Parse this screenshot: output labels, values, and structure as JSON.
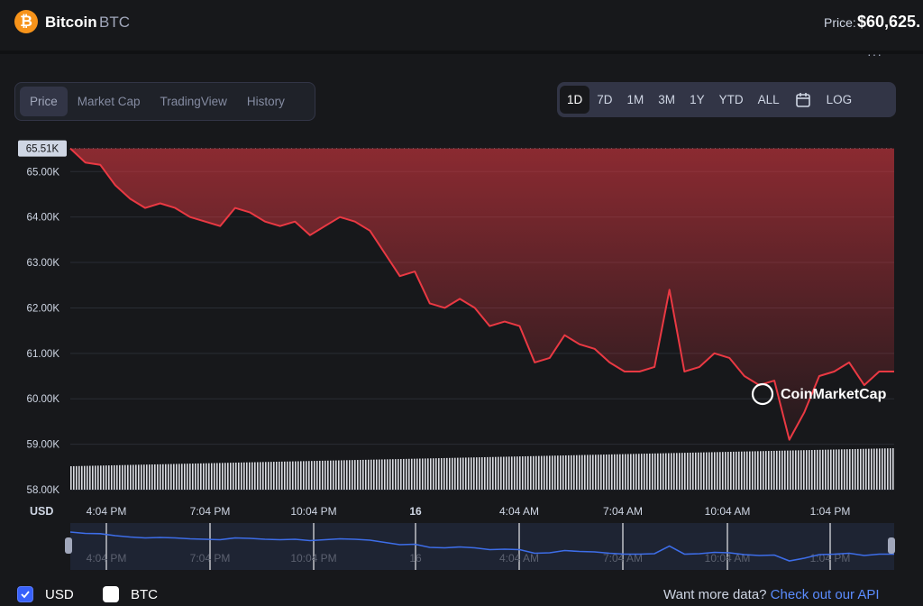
{
  "header": {
    "coin_logo_glyph": "₿",
    "coin_name": "Bitcoin",
    "coin_symbol": "BTC",
    "price_label": "Price:",
    "price_value": "$60,625.",
    "more_glyph": "···"
  },
  "tabs": [
    {
      "label": "Price",
      "active": true
    },
    {
      "label": "Market Cap",
      "active": false
    },
    {
      "label": "TradingView",
      "active": false
    },
    {
      "label": "History",
      "active": false
    }
  ],
  "ranges": [
    {
      "label": "1D",
      "active": true
    },
    {
      "label": "7D",
      "active": false
    },
    {
      "label": "1M",
      "active": false
    },
    {
      "label": "3M",
      "active": false
    },
    {
      "label": "1Y",
      "active": false
    },
    {
      "label": "YTD",
      "active": false
    },
    {
      "label": "ALL",
      "active": false
    }
  ],
  "log_label": "LOG",
  "footer": {
    "usd_label": "USD",
    "btc_label": "BTC",
    "more_data_text": "Want more data?",
    "api_link_text": "Check out our API"
  },
  "colors": {
    "line": "#ea3943",
    "accent": "#3861fb",
    "bitcoin": "#f7931a",
    "navigator_line": "#3d6de8"
  },
  "chart_data": {
    "type": "line",
    "watermark": "CoinMarketCap",
    "current_label": "65.51K",
    "y_axis_unit": "USD",
    "ylim": [
      58000,
      65700
    ],
    "y_ticks": [
      {
        "value": 65000,
        "label": "65.00K"
      },
      {
        "value": 64000,
        "label": "64.00K"
      },
      {
        "value": 63000,
        "label": "63.00K"
      },
      {
        "value": 62000,
        "label": "62.00K"
      },
      {
        "value": 61000,
        "label": "61.00K"
      },
      {
        "value": 60000,
        "label": "60.00K"
      },
      {
        "value": 59000,
        "label": "59.00K"
      },
      {
        "value": 58000,
        "label": "58.00K"
      }
    ],
    "x_ticks": [
      "4:04 PM",
      "7:04 PM",
      "10:04 PM",
      "16",
      "4:04 AM",
      "7:04 AM",
      "10:04 AM",
      "1:04 PM"
    ],
    "grid": true,
    "series": [
      {
        "values": [
          65510,
          65200,
          65150,
          64700,
          64400,
          64200,
          64300,
          64200,
          64000,
          63900,
          63800,
          64200,
          64100,
          63900,
          63800,
          63900,
          63600,
          63800,
          64000,
          63900,
          63700,
          63200,
          62700,
          62800,
          62100,
          62000,
          62200,
          62000,
          61600,
          61700,
          61600,
          60800,
          60900,
          61400,
          61200,
          61100,
          60800,
          60600,
          60600,
          60700,
          62400,
          60600,
          60700,
          61000,
          60900,
          60500,
          60300,
          60400,
          59100,
          59700,
          60500,
          60600,
          60800,
          60300,
          60600,
          60600
        ]
      }
    ],
    "volume": [
      1,
      1,
      1,
      1,
      1,
      1,
      1,
      1,
      1,
      1,
      1,
      1,
      1,
      1,
      1,
      1,
      1,
      1,
      1,
      1,
      1,
      1,
      1,
      1,
      1,
      1,
      1,
      1,
      1,
      1,
      1,
      1,
      1,
      1,
      1,
      1,
      1,
      1,
      1,
      1,
      1,
      1,
      1,
      1,
      1,
      1,
      1,
      1,
      1,
      1,
      1,
      1,
      1,
      1,
      1,
      1,
      1,
      1,
      1,
      1
    ]
  }
}
